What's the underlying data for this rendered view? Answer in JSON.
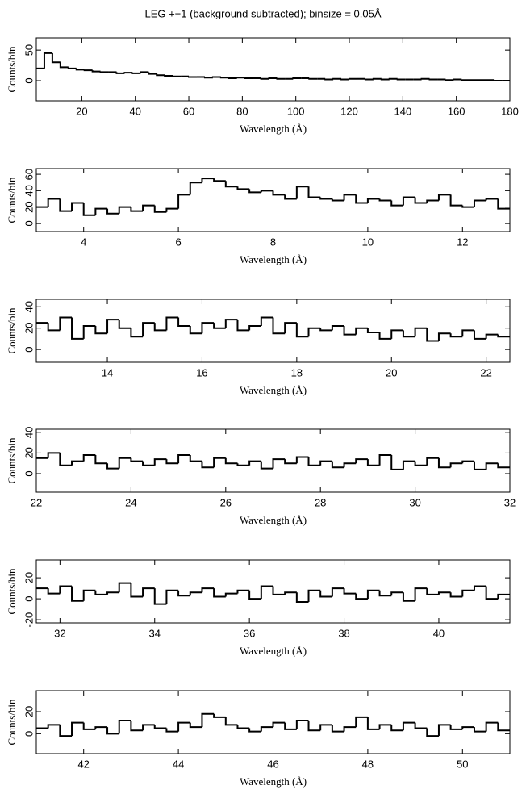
{
  "title": "LEG +−1 (background subtracted); binsize = 0.05Å",
  "chart_data": [
    {
      "type": "histogram",
      "color": "#000000",
      "xlabel": "Wavelength (Å)",
      "ylabel": "Counts/bin",
      "xlim": [
        3,
        180
      ],
      "ylim": [
        -33,
        70
      ],
      "xticks": [
        20,
        40,
        60,
        80,
        100,
        120,
        140,
        160,
        180
      ],
      "yticks": [
        0,
        50
      ],
      "bins": [
        3,
        6,
        9,
        12,
        15,
        18,
        21,
        24,
        27,
        30,
        33,
        36,
        39,
        42,
        45,
        48,
        51,
        54,
        57,
        60,
        63,
        66,
        69,
        72,
        75,
        78,
        81,
        84,
        87,
        90,
        93,
        96,
        99,
        102,
        105,
        108,
        111,
        114,
        117,
        120,
        123,
        126,
        129,
        132,
        135,
        138,
        141,
        144,
        147,
        150,
        153,
        156,
        159,
        162,
        165,
        168,
        171,
        174,
        177,
        180
      ],
      "values": [
        20,
        45,
        30,
        22,
        20,
        18,
        17,
        15,
        14,
        14,
        12,
        13,
        12,
        14,
        11,
        9,
        8,
        7,
        7,
        6,
        6,
        5,
        6,
        5,
        4,
        5,
        4,
        4,
        3,
        4,
        3,
        3,
        4,
        4,
        3,
        3,
        2,
        3,
        2,
        3,
        3,
        2,
        3,
        2,
        3,
        2,
        2,
        2,
        3,
        2,
        2,
        1,
        2,
        1,
        1,
        1,
        1,
        0,
        0
      ]
    },
    {
      "type": "histogram",
      "color": "#000000",
      "xlabel": "Wavelength (Å)",
      "ylabel": "Counts/bin",
      "xlim": [
        3,
        13
      ],
      "ylim": [
        -10,
        67
      ],
      "xticks": [
        4,
        6,
        8,
        10,
        12
      ],
      "yticks": [
        0,
        20,
        40,
        60
      ],
      "bins": [
        3,
        3.25,
        3.5,
        3.75,
        4,
        4.25,
        4.5,
        4.75,
        5,
        5.25,
        5.5,
        5.75,
        6,
        6.25,
        6.5,
        6.75,
        7,
        7.25,
        7.5,
        7.75,
        8,
        8.25,
        8.5,
        8.75,
        9,
        9.25,
        9.5,
        9.75,
        10,
        10.25,
        10.5,
        10.75,
        11,
        11.25,
        11.5,
        11.75,
        12,
        12.25,
        12.5,
        12.75,
        13
      ],
      "values": [
        20,
        30,
        15,
        25,
        10,
        18,
        12,
        20,
        15,
        22,
        14,
        18,
        35,
        50,
        55,
        52,
        45,
        42,
        38,
        40,
        35,
        30,
        45,
        32,
        30,
        28,
        35,
        25,
        30,
        28,
        22,
        32,
        25,
        28,
        35,
        22,
        20,
        28,
        30,
        18
      ]
    },
    {
      "type": "histogram",
      "color": "#000000",
      "xlabel": "Wavelength (Å)",
      "ylabel": "Counts/bin",
      "xlim": [
        12.5,
        22.5
      ],
      "ylim": [
        -12,
        47
      ],
      "xticks": [
        14,
        16,
        18,
        20,
        22
      ],
      "yticks": [
        0,
        20,
        40
      ],
      "bins": [
        12.5,
        12.75,
        13,
        13.25,
        13.5,
        13.75,
        14,
        14.25,
        14.5,
        14.75,
        15,
        15.25,
        15.5,
        15.75,
        16,
        16.25,
        16.5,
        16.75,
        17,
        17.25,
        17.5,
        17.75,
        18,
        18.25,
        18.5,
        18.75,
        19,
        19.25,
        19.5,
        19.75,
        20,
        20.25,
        20.5,
        20.75,
        21,
        21.25,
        21.5,
        21.75,
        22,
        22.25,
        22.5
      ],
      "values": [
        25,
        18,
        30,
        10,
        22,
        15,
        28,
        20,
        12,
        25,
        18,
        30,
        22,
        15,
        25,
        20,
        28,
        18,
        22,
        30,
        15,
        25,
        12,
        20,
        18,
        22,
        14,
        20,
        16,
        10,
        18,
        12,
        20,
        8,
        15,
        12,
        18,
        10,
        14,
        12
      ]
    },
    {
      "type": "histogram",
      "color": "#000000",
      "xlabel": "Wavelength (Å)",
      "ylabel": "Counts/bin",
      "xlim": [
        22,
        32
      ],
      "ylim": [
        -18,
        43
      ],
      "xticks": [
        22,
        24,
        26,
        28,
        30,
        32
      ],
      "yticks": [
        0,
        20,
        40
      ],
      "bins": [
        22,
        22.25,
        22.5,
        22.75,
        23,
        23.25,
        23.5,
        23.75,
        24,
        24.25,
        24.5,
        24.75,
        25,
        25.25,
        25.5,
        25.75,
        26,
        26.25,
        26.5,
        26.75,
        27,
        27.25,
        27.5,
        27.75,
        28,
        28.25,
        28.5,
        28.75,
        29,
        29.25,
        29.5,
        29.75,
        30,
        30.25,
        30.5,
        30.75,
        31,
        31.25,
        31.5,
        31.75,
        32
      ],
      "values": [
        15,
        20,
        8,
        12,
        18,
        10,
        5,
        15,
        12,
        8,
        14,
        10,
        18,
        12,
        6,
        15,
        10,
        8,
        12,
        5,
        14,
        10,
        16,
        8,
        12,
        6,
        10,
        14,
        8,
        18,
        4,
        12,
        8,
        15,
        6,
        10,
        12,
        4,
        10,
        6
      ]
    },
    {
      "type": "histogram",
      "color": "#000000",
      "xlabel": "Wavelength (Å)",
      "ylabel": "Counts/bin",
      "xlim": [
        31.5,
        41.5
      ],
      "ylim": [
        -23,
        37
      ],
      "xticks": [
        32,
        34,
        36,
        38,
        40
      ],
      "yticks": [
        -20,
        0,
        20
      ],
      "bins": [
        31.5,
        31.75,
        32,
        32.25,
        32.5,
        32.75,
        33,
        33.25,
        33.5,
        33.75,
        34,
        34.25,
        34.5,
        34.75,
        35,
        35.25,
        35.5,
        35.75,
        36,
        36.25,
        36.5,
        36.75,
        37,
        37.25,
        37.5,
        37.75,
        38,
        38.25,
        38.5,
        38.75,
        39,
        39.25,
        39.5,
        39.75,
        40,
        40.25,
        40.5,
        40.75,
        41,
        41.25,
        41.5
      ],
      "values": [
        10,
        5,
        12,
        -2,
        8,
        4,
        6,
        15,
        2,
        10,
        -5,
        8,
        3,
        6,
        10,
        2,
        5,
        8,
        0,
        12,
        4,
        6,
        -3,
        8,
        2,
        10,
        5,
        0,
        8,
        3,
        6,
        -2,
        10,
        4,
        6,
        2,
        8,
        12,
        0,
        4
      ]
    },
    {
      "type": "histogram",
      "color": "#000000",
      "xlabel": "Wavelength (Å)",
      "ylabel": "Counts/bin",
      "xlim": [
        41,
        51
      ],
      "ylim": [
        -18,
        39
      ],
      "xticks": [
        42,
        44,
        46,
        48,
        50
      ],
      "yticks": [
        0,
        20
      ],
      "bins": [
        41,
        41.25,
        41.5,
        41.75,
        42,
        42.25,
        42.5,
        42.75,
        43,
        43.25,
        43.5,
        43.75,
        44,
        44.25,
        44.5,
        44.75,
        45,
        45.25,
        45.5,
        45.75,
        46,
        46.25,
        46.5,
        46.75,
        47,
        47.25,
        47.5,
        47.75,
        48,
        48.25,
        48.5,
        48.75,
        49,
        49.25,
        49.5,
        49.75,
        50,
        50.25,
        50.5,
        50.75,
        51
      ],
      "values": [
        5,
        8,
        -2,
        10,
        4,
        6,
        0,
        12,
        3,
        8,
        5,
        2,
        10,
        6,
        18,
        15,
        8,
        5,
        2,
        6,
        10,
        4,
        12,
        3,
        8,
        2,
        6,
        15,
        4,
        8,
        3,
        10,
        5,
        -2,
        8,
        4,
        6,
        2,
        10,
        3
      ]
    }
  ]
}
